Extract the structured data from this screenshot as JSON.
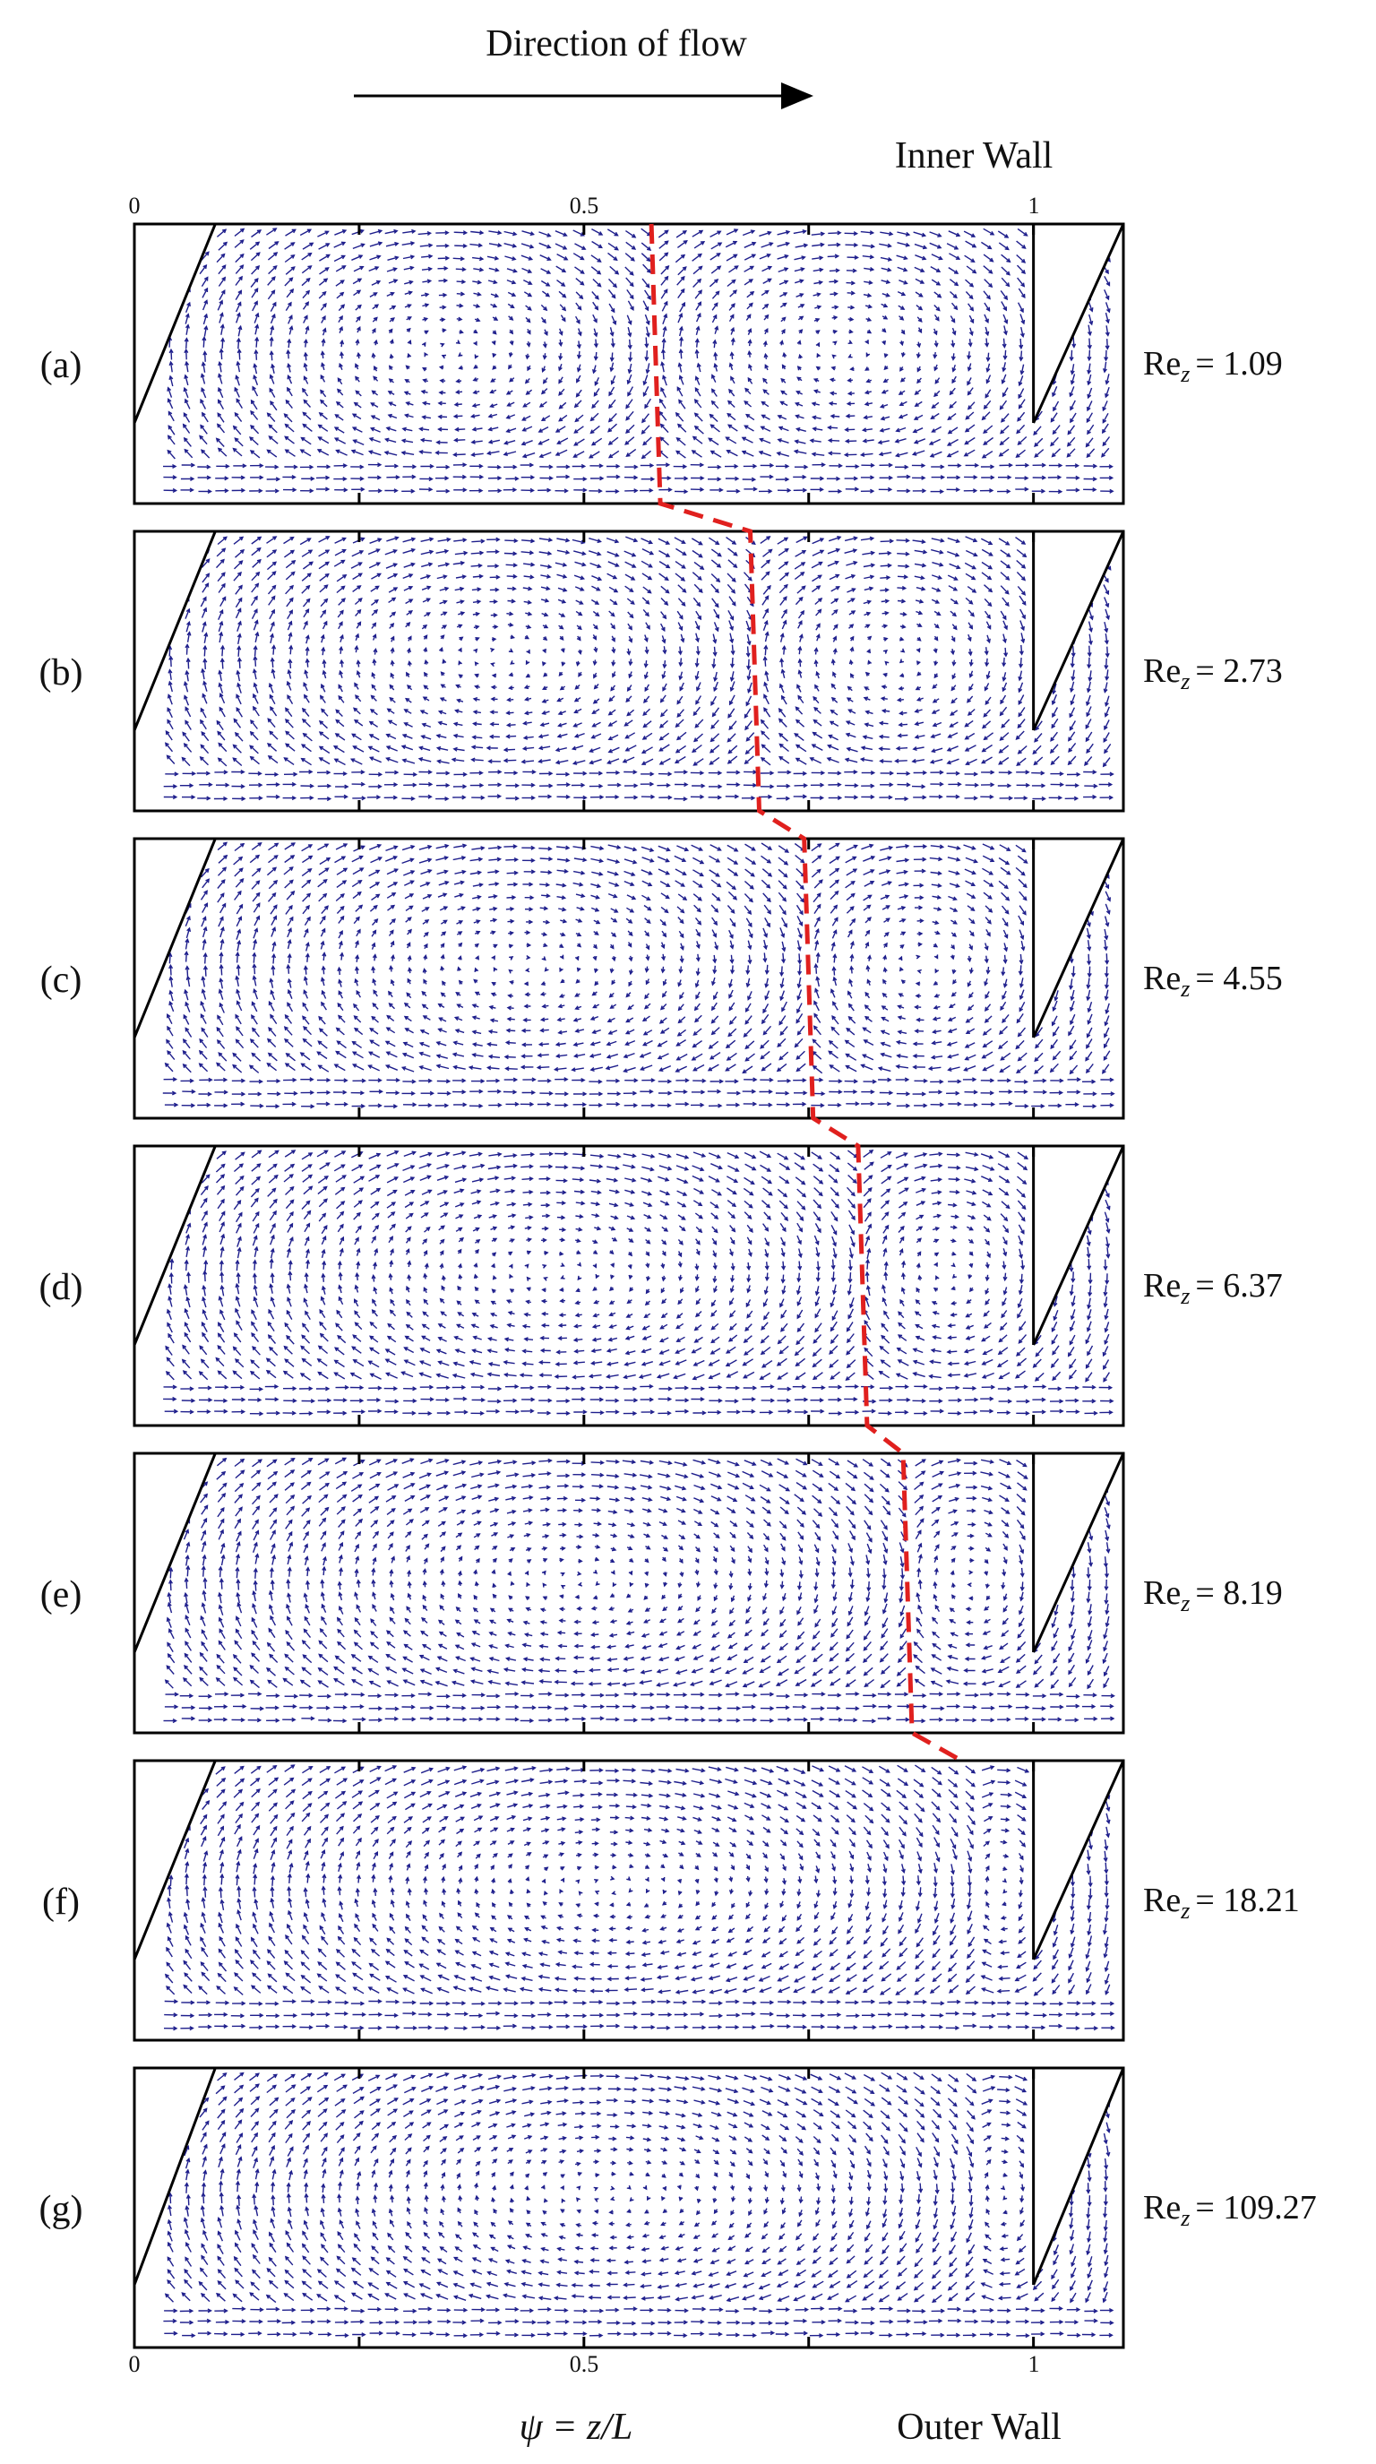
{
  "header": {
    "flow_label": "Direction of flow"
  },
  "labels": {
    "inner_wall": "Inner Wall",
    "outer_wall": "Outer Wall",
    "x_axis_label": "ψ = z/L"
  },
  "axis": {
    "ticks": [
      "0",
      "0.5",
      "1"
    ],
    "xlim": [
      0,
      1.1
    ],
    "tick_values": [
      0,
      0.5,
      1
    ]
  },
  "colors": {
    "arrows": "#1e1e8c",
    "marker": "#e0201e",
    "frame": "#000000"
  },
  "panels": [
    {
      "id": "(a)",
      "re_symbol": "Re",
      "re_sub": "z",
      "re_value": "= 1.09",
      "boundary_psi": 0.58
    },
    {
      "id": "(b)",
      "re_symbol": "Re",
      "re_sub": "z",
      "re_value": "= 2.73",
      "boundary_psi": 0.69
    },
    {
      "id": "(c)",
      "re_symbol": "Re",
      "re_sub": "z",
      "re_value": "= 4.55",
      "boundary_psi": 0.75
    },
    {
      "id": "(d)",
      "re_symbol": "Re",
      "re_sub": "z",
      "re_value": "= 6.37",
      "boundary_psi": 0.81
    },
    {
      "id": "(e)",
      "re_symbol": "Re",
      "re_sub": "z",
      "re_value": "= 8.19",
      "boundary_psi": 0.86
    },
    {
      "id": "(f)",
      "re_symbol": "Re",
      "re_sub": "z",
      "re_value": "= 18.21",
      "boundary_psi": null
    },
    {
      "id": "(g)",
      "re_symbol": "Re",
      "re_sub": "z",
      "re_value": "= 109.27",
      "boundary_psi": null
    }
  ]
}
